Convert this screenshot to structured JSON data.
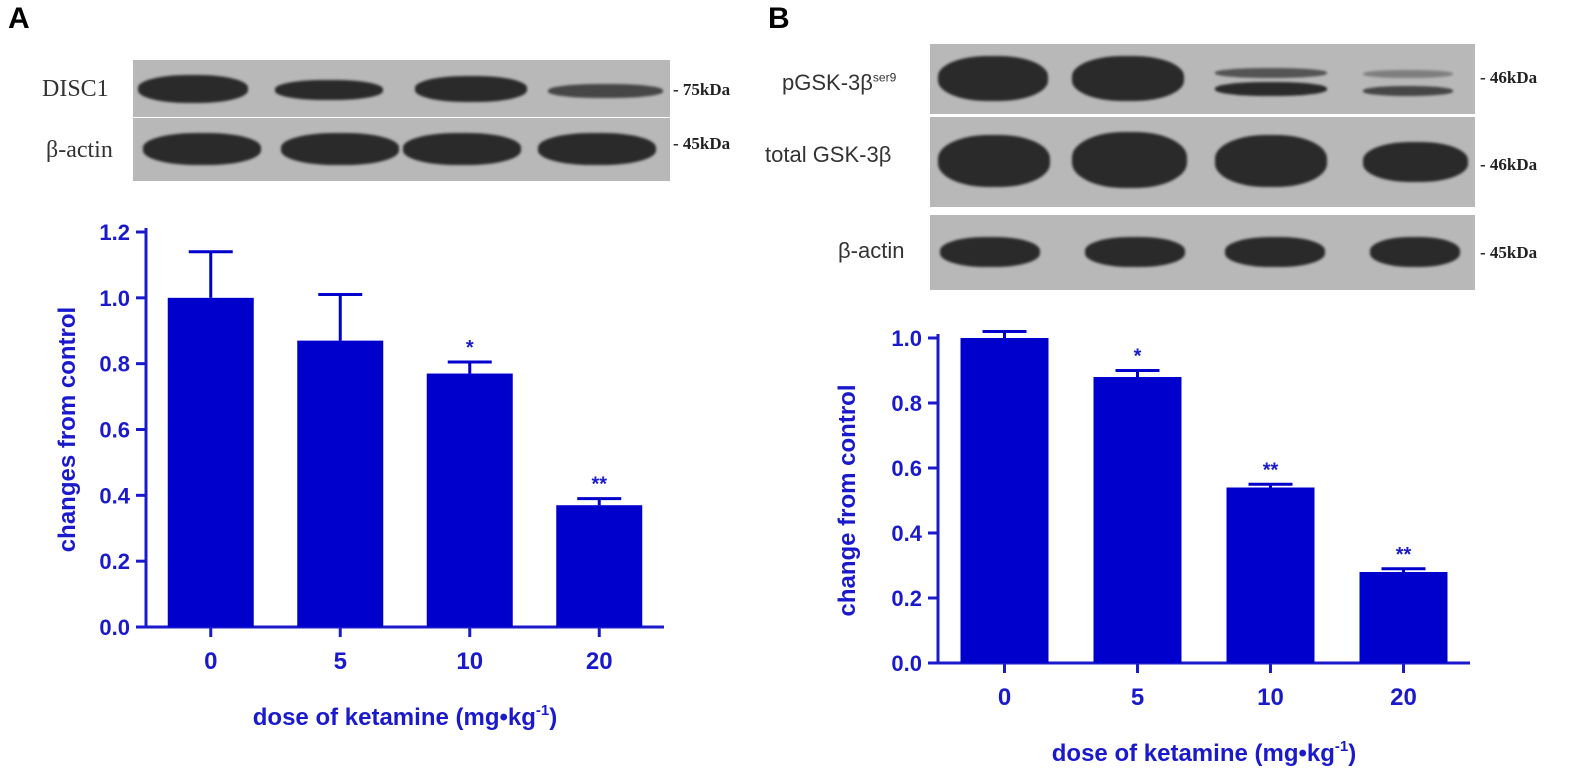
{
  "panels": [
    {
      "letter": "A",
      "blots": [
        {
          "label": "DISC1",
          "kda": "- 75kDa"
        },
        {
          "label": "β-actin",
          "kda": "- 45kDa"
        }
      ]
    },
    {
      "letter": "B",
      "blots": [
        {
          "label": "pGSK-3β",
          "label_sup": "ser9",
          "kda": "- 46kDa"
        },
        {
          "label": "total GSK-3β",
          "kda": "- 46kDa"
        },
        {
          "label": "β-actin",
          "kda": "- 45kDa"
        }
      ]
    }
  ],
  "colors": {
    "bar": "#0000cc",
    "axis": "#1a1acc"
  },
  "chart_data": [
    {
      "type": "bar",
      "categories": [
        "0",
        "5",
        "10",
        "20"
      ],
      "values": [
        1.0,
        0.87,
        0.77,
        0.37
      ],
      "errors": [
        0.14,
        0.14,
        0.035,
        0.02
      ],
      "significance": [
        "",
        "",
        "*",
        "**"
      ],
      "xlabel": "dose of ketamine (mg•kg",
      "xlabel_sup": "-1",
      "xlabel_end": ")",
      "ylabel": "changes from control",
      "ylim": [
        0,
        1.2
      ],
      "yticks": [
        "0.0",
        "0.2",
        "0.4",
        "0.6",
        "0.8",
        "1.0",
        "1.2"
      ]
    },
    {
      "type": "bar",
      "categories": [
        "0",
        "5",
        "10",
        "20"
      ],
      "values": [
        1.0,
        0.88,
        0.54,
        0.28
      ],
      "errors": [
        0.02,
        0.02,
        0.01,
        0.01
      ],
      "significance": [
        "",
        "*",
        "**",
        "**"
      ],
      "xlabel": "dose of ketamine (mg•kg",
      "xlabel_sup": "-1",
      "xlabel_end": ")",
      "ylabel": "change from control",
      "ylim": [
        0,
        1.0
      ],
      "yticks": [
        "0.0",
        "0.2",
        "0.4",
        "0.6",
        "0.8",
        "1.0"
      ]
    }
  ]
}
